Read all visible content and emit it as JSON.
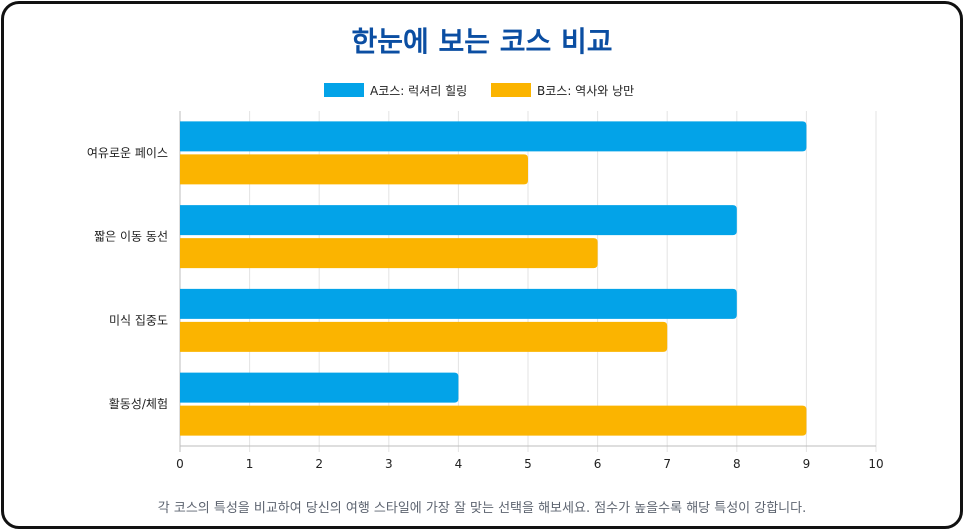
{
  "page": {
    "title": "한눈에 보는 코스 비교",
    "footnote": "각 코스의 특성을 비교하여 당신의 여행 스타일에 가장 잘 맞는 선택을 해보세요. 점수가 높을수록 해당 특성이 강합니다."
  },
  "colors": {
    "title": "#0b4ea2",
    "series_a": "#03a3e8",
    "series_b": "#fbb400",
    "grid": "#e3e3e3",
    "axis": "#bdbdbd",
    "text": "#222222"
  },
  "chart_data": {
    "type": "bar",
    "orientation": "horizontal",
    "categories": [
      "여유로운 페이스",
      "짧은 이동 동선",
      "미식 집중도",
      "활동성/체험"
    ],
    "series": [
      {
        "name": "A코스: 럭셔리 힐링",
        "values": [
          9,
          8,
          8,
          4
        ]
      },
      {
        "name": "B코스: 역사와 낭만",
        "values": [
          5,
          6,
          7,
          9
        ]
      }
    ],
    "xlim": [
      0,
      10
    ],
    "xticks": [
      0,
      1,
      2,
      3,
      4,
      5,
      6,
      7,
      8,
      9,
      10
    ],
    "grid": true,
    "legend_position": "top-center"
  }
}
